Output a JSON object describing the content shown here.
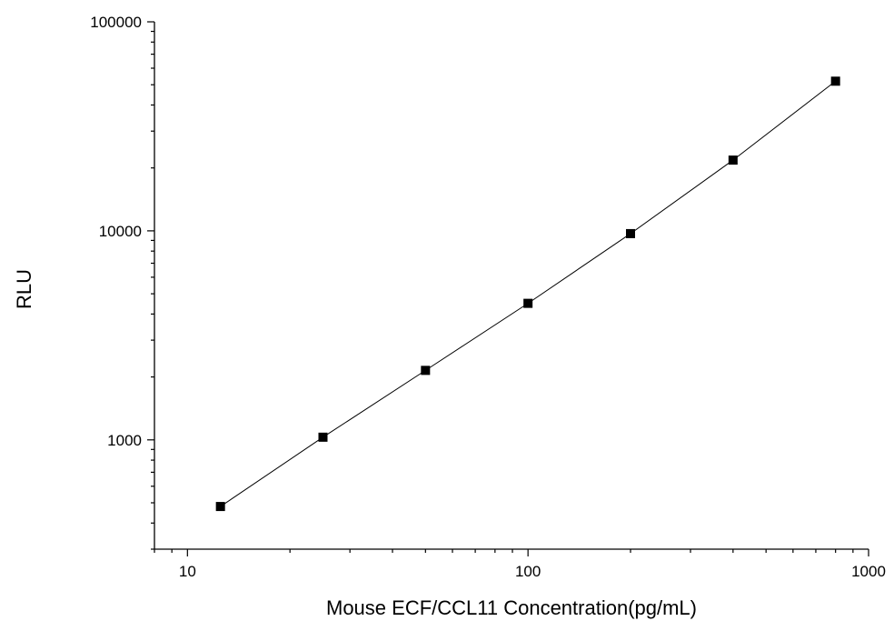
{
  "chart_data": {
    "type": "scatter",
    "xlabel": "Mouse ECF/CCL11 Concentration(pg/mL)",
    "ylabel": "RLU",
    "x_scale": "log",
    "y_scale": "log",
    "xlim": [
      8,
      1000
    ],
    "ylim": [
      300,
      100000
    ],
    "x_ticks": [
      10,
      100,
      1000
    ],
    "x_tick_labels": [
      "10",
      "100",
      "1000"
    ],
    "y_ticks": [
      1000,
      10000,
      100000
    ],
    "y_tick_labels": [
      "1000",
      "10000",
      "100000"
    ],
    "grid": false,
    "series": [
      {
        "x": [
          12.5,
          25,
          50,
          100,
          200,
          400,
          800
        ],
        "y": [
          480,
          1030,
          2150,
          4500,
          9700,
          21800,
          52000
        ],
        "marker": "square",
        "line": true,
        "color": "#000000"
      }
    ]
  }
}
